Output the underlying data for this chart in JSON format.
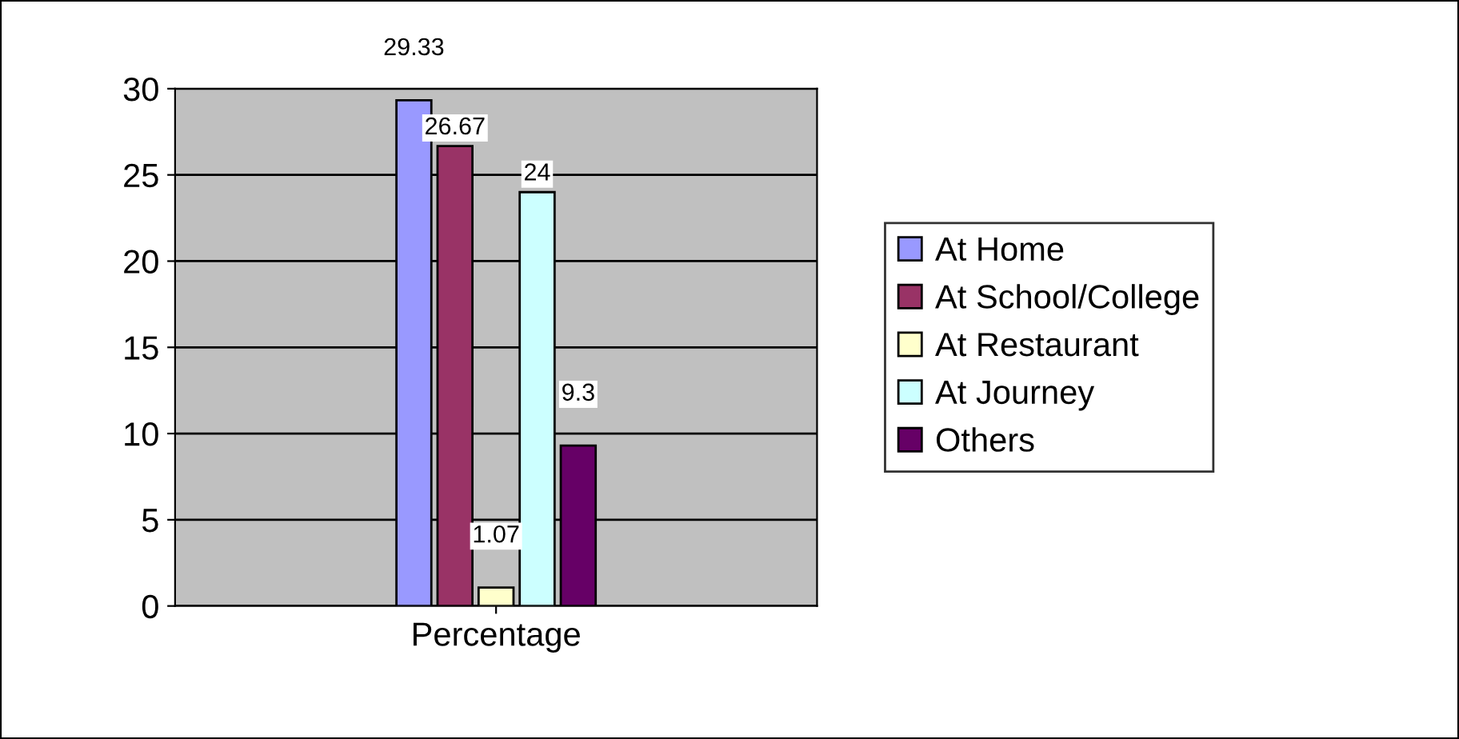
{
  "chart_data": {
    "type": "bar",
    "categories": [
      "Percentage"
    ],
    "series": [
      {
        "name": "At Home",
        "color": "#9999ff",
        "values": [
          29.33
        ]
      },
      {
        "name": "At School/College",
        "color": "#993366",
        "values": [
          26.67
        ]
      },
      {
        "name": "At Restaurant",
        "color": "#ffffcc",
        "values": [
          1.07
        ]
      },
      {
        "name": "At Journey",
        "color": "#ccffff",
        "values": [
          24
        ]
      },
      {
        "name": "Others",
        "color": "#660066",
        "values": [
          9.3
        ]
      }
    ],
    "ylim": [
      0,
      30
    ],
    "yticks": [
      0,
      5,
      10,
      15,
      20,
      25,
      30
    ],
    "grid": "y",
    "legend": "right",
    "data_labels": true
  }
}
